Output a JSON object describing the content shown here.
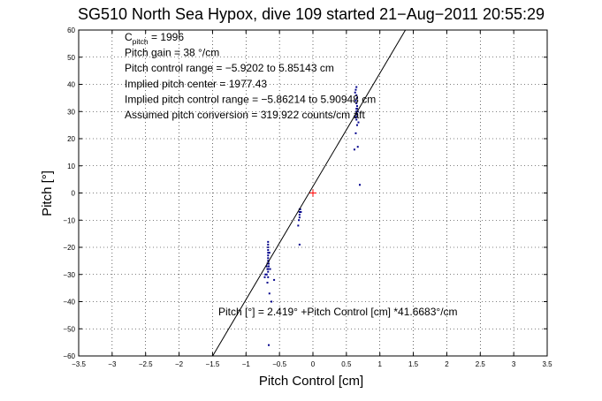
{
  "chart_data": {
    "type": "scatter",
    "title": "SG510 North Sea Hypox, dive 109 started 21−Aug−2011 20:55:29",
    "xlabel": "Pitch Control [cm]",
    "ylabel": "Pitch [°]",
    "xlim": [
      -3.5,
      3.5
    ],
    "ylim": [
      -60,
      60
    ],
    "xticks": [
      -3.5,
      -3,
      -2.5,
      -2,
      -1.5,
      -1,
      -0.5,
      0,
      0.5,
      1,
      1.5,
      2,
      2.5,
      3,
      3.5
    ],
    "yticks": [
      -60,
      -50,
      -40,
      -30,
      -20,
      -10,
      0,
      10,
      20,
      30,
      40,
      50,
      60
    ],
    "xtick_labels": [
      "−3.5",
      "−3",
      "−2.5",
      "−2",
      "−1.5",
      "−1",
      "−0.5",
      "0",
      "0.5",
      "1",
      "1.5",
      "2",
      "2.5",
      "3",
      "3.5"
    ],
    "ytick_labels": [
      "−60",
      "−50",
      "−40",
      "−30",
      "−20",
      "−10",
      "0",
      "10",
      "20",
      "30",
      "40",
      "50",
      "60"
    ],
    "grid": true,
    "annotations": [
      {
        "main": "C",
        "sub": "pitch",
        "rest": " = 1996"
      },
      {
        "text": "Pitch gain = 38 °/cm"
      },
      {
        "text": "Pitch control range = −5.9202 to 5.85143 cm"
      },
      {
        "text": "Implied pitch center = 1977.43"
      },
      {
        "text": "Implied pitch control range = −5.86214 to 5.90948 cm"
      },
      {
        "text": "Assumed pitch conversion = 319.922 counts/cm aft"
      }
    ],
    "fit_label": "Pitch [°] = 2.419° +Pitch Control [cm] *41.6683°/cm",
    "fit": {
      "intercept": 2.419,
      "slope": 41.6683,
      "color": "#000000"
    },
    "center_marker": {
      "x": 0.0,
      "y": 0.0,
      "color": "#ff0000"
    },
    "series": [
      {
        "color": "#00008b",
        "points": [
          [
            -0.67,
            -18
          ],
          [
            -0.67,
            -19
          ],
          [
            -0.67,
            -20
          ],
          [
            -0.67,
            -21
          ],
          [
            -0.67,
            -22
          ],
          [
            -0.67,
            -23
          ],
          [
            -0.67,
            -24
          ],
          [
            -0.67,
            -25
          ],
          [
            -0.66,
            -26
          ],
          [
            -0.66,
            -27
          ],
          [
            -0.67,
            -28
          ],
          [
            -0.67,
            -29
          ],
          [
            -0.68,
            -28
          ],
          [
            -0.68,
            -26
          ],
          [
            -0.69,
            -27
          ],
          [
            -0.69,
            -30
          ],
          [
            -0.65,
            -22
          ],
          [
            -0.66,
            -25
          ],
          [
            -0.64,
            -28
          ],
          [
            -0.71,
            -30
          ],
          [
            -0.72,
            -31
          ],
          [
            -0.68,
            -33
          ],
          [
            -0.65,
            -37
          ],
          [
            -0.62,
            -40
          ],
          [
            -0.58,
            -32
          ],
          [
            -0.66,
            -56
          ],
          [
            -0.67,
            -31
          ],
          [
            -0.2,
            -6
          ],
          [
            -0.2,
            -7
          ],
          [
            -0.2,
            -8
          ],
          [
            -0.2,
            -9
          ],
          [
            -0.19,
            -6
          ],
          [
            -0.21,
            -10
          ],
          [
            -0.22,
            -12
          ],
          [
            -0.2,
            -19
          ],
          [
            -0.18,
            -7
          ],
          [
            0.65,
            27
          ],
          [
            0.65,
            28
          ],
          [
            0.65,
            29
          ],
          [
            0.65,
            30
          ],
          [
            0.65,
            31
          ],
          [
            0.66,
            29
          ],
          [
            0.64,
            28
          ],
          [
            0.66,
            32
          ],
          [
            0.65,
            33
          ],
          [
            0.64,
            34
          ],
          [
            0.66,
            35
          ],
          [
            0.65,
            36
          ],
          [
            0.64,
            38
          ],
          [
            0.65,
            39
          ],
          [
            0.63,
            37
          ],
          [
            0.66,
            31
          ],
          [
            0.67,
            30
          ],
          [
            0.62,
            16
          ],
          [
            0.67,
            17
          ],
          [
            0.7,
            3
          ],
          [
            0.68,
            26
          ],
          [
            0.66,
            25
          ],
          [
            0.64,
            22
          ]
        ]
      }
    ]
  }
}
